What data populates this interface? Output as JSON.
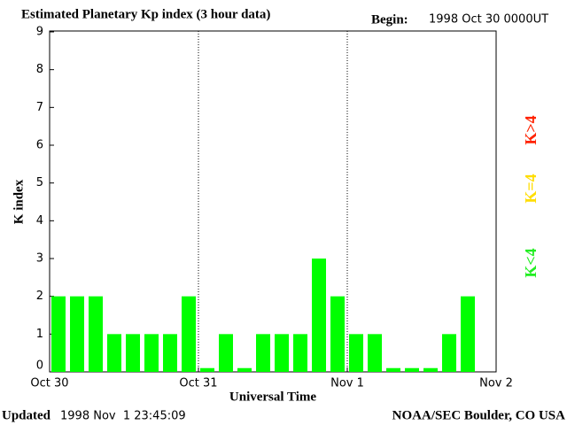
{
  "chart_data": {
    "type": "bar",
    "title": "Estimated Planetary Kp index (3 hour data)",
    "begin_label": "Begin:",
    "begin_value": "1998 Oct 30 0000UT",
    "ylabel": "K index",
    "xlabel": "Universal Time",
    "updated_label": "Updated",
    "updated_value": "1998 Nov  1 23:45:09",
    "source": "NOAA/SEC Boulder, CO USA",
    "x": [
      0,
      3,
      6,
      9,
      12,
      15,
      18,
      21,
      24,
      27,
      30,
      33,
      36,
      39,
      42,
      45,
      48,
      51,
      54,
      57,
      60,
      63,
      66
    ],
    "values": [
      2,
      2,
      2,
      1,
      1,
      1,
      1,
      2,
      0.1,
      1,
      0.1,
      1,
      1,
      1,
      3,
      2,
      1,
      1,
      0.1,
      0.1,
      0.1,
      1,
      2
    ],
    "color": "#00ff00",
    "xlim": [
      0,
      72
    ],
    "xticks": [
      {
        "value": 0,
        "label": "Oct 30"
      },
      {
        "value": 24,
        "label": "Oct 31"
      },
      {
        "value": 48,
        "label": "Nov 1"
      },
      {
        "value": 72,
        "label": "Nov 2"
      }
    ],
    "ylim": [
      0,
      9
    ],
    "yticks": [
      0,
      1,
      2,
      3,
      4,
      5,
      6,
      7,
      8,
      9
    ],
    "legend": [
      {
        "label": "K<4",
        "color": "#22ee22"
      },
      {
        "label": "K=4",
        "color": "#ffdd00"
      },
      {
        "label": "K>4",
        "color": "#ff2200"
      }
    ]
  }
}
